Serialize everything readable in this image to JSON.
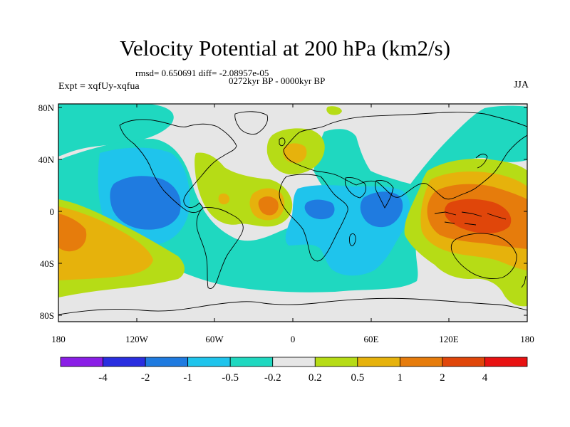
{
  "title": "Velocity Potential at 200 hPa (km2/s)",
  "stats_line": "rmsd= 0.650691 diff= -2.08957e-05",
  "experiment": "Expt = xqfUy-xqfua",
  "period": "0272kyr BP - 0000kyr BP",
  "season": "JJA",
  "lat_ticks": [
    "80N",
    "40N",
    "0",
    "40S",
    "80S"
  ],
  "lon_ticks": [
    "180",
    "120W",
    "60W",
    "0",
    "60E",
    "120E",
    "180"
  ],
  "colorbar": {
    "levels": [
      "-4",
      "-2",
      "-1",
      "-0.5",
      "-0.2",
      "0.2",
      "0.5",
      "1",
      "2",
      "4"
    ],
    "colors": [
      "#8a1ee6",
      "#2a2ee0",
      "#1f7be0",
      "#1fc4ec",
      "#1fd8c0",
      "#e6e6e6",
      "#b6dc16",
      "#e6b20c",
      "#e67c0c",
      "#e0460a",
      "#e81212"
    ]
  }
}
